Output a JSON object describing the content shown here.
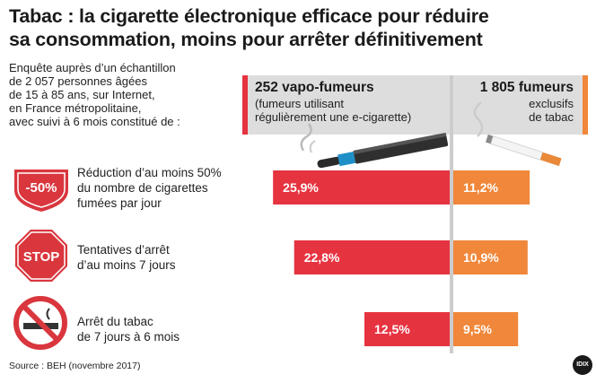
{
  "title_line1": "Tabac : la cigarette électronique efficace pour réduire",
  "title_line2": "sa consommation, moins pour arrêter définitivement",
  "intro": [
    "Enquête auprès d’un échantillon",
    "de 2 057 personnes âgées",
    "de 15 à 85 ans, sur Internet,",
    "en France métropolitaine,",
    "avec suivi à 6 mois constitué de :"
  ],
  "groups": {
    "vapo": {
      "name": "252 vapo-fumeurs",
      "sub1": "(fumeurs utilisant",
      "sub2": "régulièrement une e-cigarette)",
      "color": "#e63340"
    },
    "fumeurs": {
      "name": "1 805 fumeurs",
      "sub1": "exclusifs",
      "sub2": "de tabac",
      "color": "#f0873a"
    }
  },
  "categories": [
    {
      "label1": "Réduction d’au moins 50%",
      "label2": "du nombre de cigarettes",
      "label3": "fumées par jour",
      "icon": "minus-50-shield-icon",
      "icon_text": "-50%"
    },
    {
      "label1": "Tentatives d’arrêt",
      "label2": "d’au moins 7 jours",
      "label3": "",
      "icon": "stop-sign-icon",
      "icon_text": "STOP"
    },
    {
      "label1": "Arrêt du tabac",
      "label2": "de 7 jours à 6 mois",
      "label3": "",
      "icon": "no-smoking-icon",
      "icon_text": ""
    }
  ],
  "chart_data": {
    "type": "bar",
    "categories": [
      "Réduction d’au moins 50% du nombre de cigarettes fumées par jour",
      "Tentatives d’arrêt d’au moins 7 jours",
      "Arrêt du tabac de 7 jours à 6 mois"
    ],
    "series": [
      {
        "name": "252 vapo-fumeurs",
        "values": [
          25.9,
          22.8,
          12.5
        ],
        "labels": [
          "25,9%",
          "22,8%",
          "12,5%"
        ]
      },
      {
        "name": "1 805 fumeurs exclusifs de tabac",
        "values": [
          11.2,
          10.9,
          9.5
        ],
        "labels": [
          "11,2%",
          "10,9%",
          "9,5%"
        ]
      }
    ]
  },
  "source": "Source : BEH (novembre 2017)",
  "logo": "IDIX"
}
